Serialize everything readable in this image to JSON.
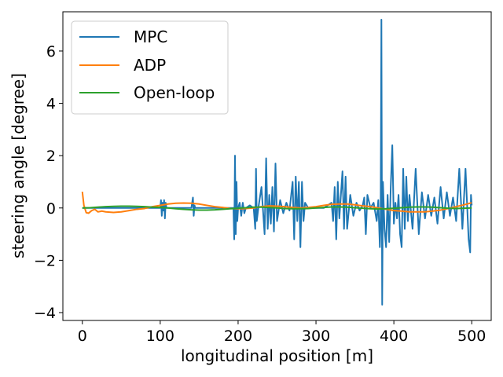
{
  "chart_data": {
    "type": "line",
    "xlabel": "longitudinal position [m]",
    "ylabel": "steering angle [degree]",
    "xlim": [
      -25,
      525
    ],
    "ylim": [
      -4.3,
      7.5
    ],
    "xticks": [
      0,
      100,
      200,
      300,
      400,
      500
    ],
    "yticks": [
      -4,
      -2,
      0,
      2,
      4,
      6
    ],
    "xtick_labels": [
      "0",
      "100",
      "200",
      "300",
      "400",
      "500"
    ],
    "ytick_labels": [
      "−4",
      "−2",
      "0",
      "2",
      "4",
      "6"
    ],
    "grid": false,
    "legend": "top-left",
    "series": [
      {
        "name": "MPC",
        "color": "#1f77b4",
        "x": [
          0,
          10,
          20,
          30,
          40,
          50,
          60,
          70,
          80,
          90,
          100,
          101,
          102,
          103,
          104,
          105,
          106,
          107,
          108,
          110,
          120,
          130,
          140,
          142,
          143,
          144,
          145,
          150,
          160,
          170,
          180,
          190,
          194,
          195,
          196,
          197,
          198,
          199,
          200,
          202,
          204,
          206,
          208,
          210,
          215,
          220,
          222,
          223,
          224,
          226,
          230,
          234,
          236,
          238,
          240,
          242,
          244,
          246,
          248,
          250,
          254,
          258,
          262,
          266,
          270,
          272,
          274,
          276,
          278,
          280,
          282,
          284,
          286,
          290,
          300,
          310,
          320,
          322,
          324,
          326,
          328,
          330,
          334,
          336,
          338,
          340,
          344,
          348,
          352,
          356,
          360,
          362,
          364,
          366,
          370,
          374,
          378,
          380,
          382,
          383,
          384,
          385,
          386,
          388,
          390,
          392,
          394,
          396,
          398,
          400,
          402,
          404,
          406,
          408,
          410,
          412,
          414,
          416,
          418,
          420,
          424,
          428,
          432,
          436,
          440,
          444,
          448,
          452,
          456,
          460,
          464,
          468,
          472,
          476,
          480,
          484,
          488,
          492,
          496,
          498,
          499,
          500
        ],
        "y": [
          0.0,
          0.0,
          0.0,
          0.0,
          0.0,
          0.0,
          0.0,
          0.0,
          0.0,
          0.0,
          0.0,
          0.3,
          -0.3,
          0.2,
          -0.1,
          0.3,
          -0.4,
          0.2,
          0.0,
          0.0,
          0.0,
          0.0,
          0.0,
          0.4,
          -0.3,
          0.1,
          0.0,
          0.0,
          0.0,
          0.0,
          0.0,
          0.0,
          0.0,
          -1.2,
          2.0,
          -1.0,
          1.0,
          -0.5,
          0.0,
          0.2,
          -0.3,
          0.2,
          -0.2,
          0.0,
          0.1,
          0.0,
          -0.8,
          1.5,
          -0.5,
          0.0,
          0.8,
          -1.0,
          1.9,
          -0.8,
          0.5,
          -0.6,
          0.8,
          -0.9,
          1.7,
          -0.5,
          0.3,
          -0.2,
          0.2,
          -0.1,
          1.0,
          -1.2,
          1.2,
          -0.5,
          1.0,
          -1.5,
          1.0,
          -0.5,
          0.2,
          0.0,
          0.0,
          0.0,
          0.2,
          -0.5,
          0.8,
          -1.2,
          1.0,
          -0.4,
          1.4,
          -0.8,
          1.2,
          -0.8,
          0.5,
          -0.3,
          0.2,
          -0.1,
          0.1,
          0.4,
          -1.0,
          0.5,
          0.0,
          0.2,
          -0.5,
          0.3,
          -1.5,
          -0.5,
          7.2,
          -3.7,
          1.0,
          -0.8,
          -1.5,
          0.5,
          -1.3,
          0.8,
          2.4,
          -0.6,
          0.2,
          -0.4,
          0.5,
          -1.0,
          -1.5,
          1.5,
          -0.8,
          1.2,
          -0.5,
          0.5,
          -0.8,
          1.5,
          -1.0,
          0.6,
          -0.4,
          0.5,
          -0.3,
          0.4,
          -0.6,
          0.8,
          -0.4,
          0.6,
          -0.3,
          0.4,
          -0.5,
          1.5,
          -0.8,
          1.5,
          -1.2,
          -1.7,
          0.5,
          0.1
        ]
      },
      {
        "name": "ADP",
        "color": "#ff7f0e",
        "x": [
          0,
          2,
          5,
          8,
          12,
          16,
          20,
          25,
          30,
          40,
          50,
          60,
          70,
          80,
          90,
          100,
          110,
          120,
          130,
          140,
          150,
          160,
          170,
          180,
          190,
          200,
          210,
          220,
          230,
          240,
          250,
          260,
          270,
          280,
          290,
          300,
          310,
          320,
          330,
          340,
          350,
          360,
          370,
          380,
          390,
          400,
          410,
          420,
          430,
          440,
          450,
          460,
          470,
          480,
          490,
          500
        ],
        "y": [
          0.62,
          0.1,
          -0.18,
          -0.2,
          -0.1,
          -0.05,
          -0.15,
          -0.12,
          -0.15,
          -0.17,
          -0.15,
          -0.1,
          -0.05,
          -0.02,
          0.05,
          0.1,
          0.15,
          0.18,
          0.19,
          0.18,
          0.15,
          0.1,
          0.05,
          0.02,
          -0.02,
          -0.03,
          -0.02,
          0.0,
          0.05,
          0.08,
          0.07,
          0.05,
          0.02,
          0.0,
          0.02,
          0.05,
          0.1,
          0.14,
          0.15,
          0.15,
          0.12,
          0.08,
          0.05,
          0.0,
          -0.05,
          -0.1,
          -0.12,
          -0.15,
          -0.15,
          -0.15,
          -0.12,
          -0.08,
          -0.02,
          0.05,
          0.12,
          0.2
        ]
      },
      {
        "name": "Open-loop",
        "color": "#2ca02c",
        "x": [
          0,
          10,
          20,
          30,
          40,
          50,
          60,
          70,
          80,
          90,
          100,
          110,
          120,
          130,
          140,
          150,
          160,
          170,
          180,
          190,
          200,
          210,
          220,
          230,
          240,
          250,
          260,
          270,
          280,
          290,
          300,
          310,
          320,
          330,
          340,
          350,
          360,
          370,
          380,
          390,
          400,
          410,
          420,
          430,
          440,
          450,
          460,
          470,
          480,
          490,
          500
        ],
        "y": [
          0.0,
          0.01,
          0.03,
          0.05,
          0.06,
          0.07,
          0.07,
          0.06,
          0.05,
          0.03,
          0.02,
          0.0,
          -0.03,
          -0.05,
          -0.07,
          -0.08,
          -0.08,
          -0.07,
          -0.05,
          -0.03,
          -0.01,
          0.01,
          0.03,
          0.03,
          0.02,
          0.0,
          -0.02,
          -0.03,
          -0.03,
          -0.02,
          0.0,
          0.02,
          0.04,
          0.04,
          0.03,
          0.01,
          -0.01,
          -0.03,
          -0.04,
          -0.03,
          -0.01,
          0.01,
          0.03,
          0.04,
          0.04,
          0.03,
          0.01,
          -0.01,
          -0.02,
          -0.01,
          0.0
        ]
      }
    ]
  }
}
